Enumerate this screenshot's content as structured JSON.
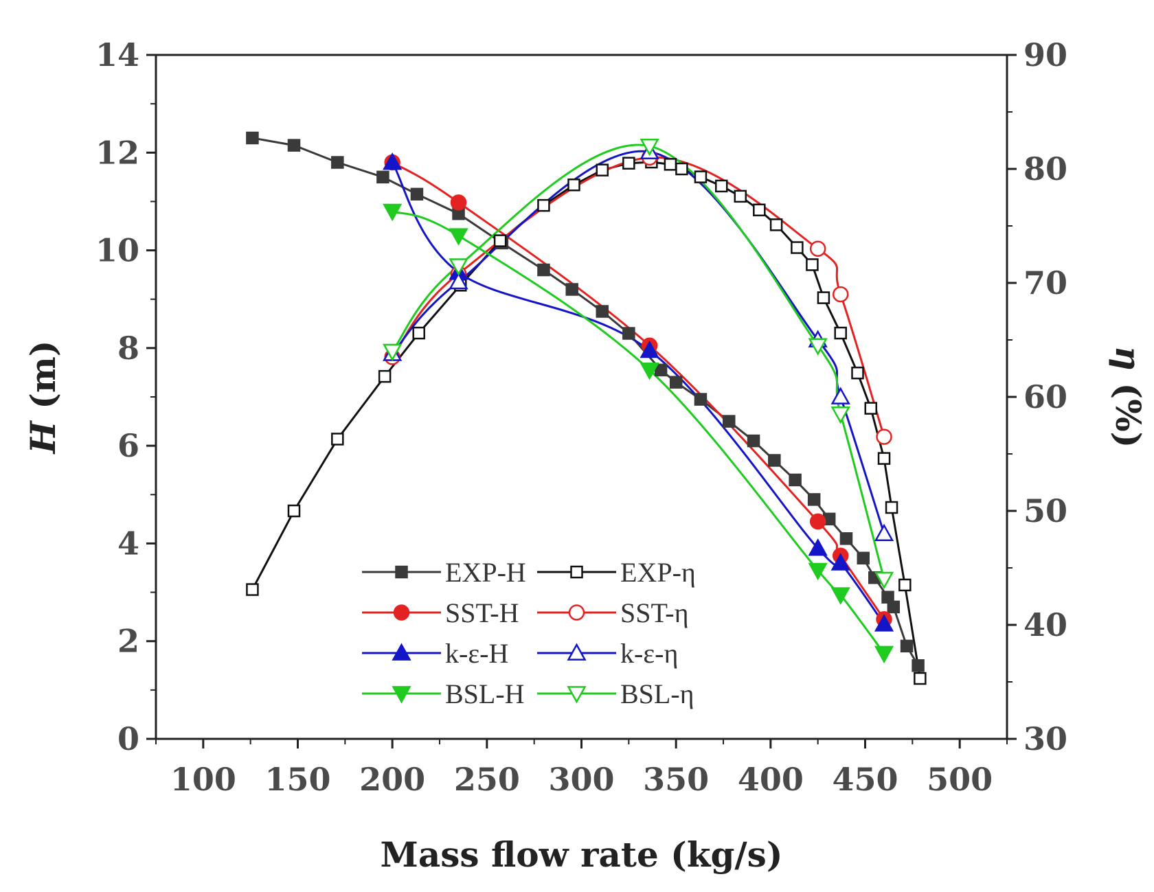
{
  "chart_data": {
    "type": "line",
    "xlabel": "Mass flow rate (kg/s)",
    "ylabel_left": {
      "italic": "H",
      "rest": " (m)"
    },
    "ylabel_right": {
      "italic": "η",
      "rest": " (%)"
    },
    "xlim": [
      75,
      525
    ],
    "ylim_left": [
      0,
      14
    ],
    "ylim_right": [
      30,
      90
    ],
    "x_ticks": [
      100,
      150,
      200,
      250,
      300,
      350,
      400,
      450,
      500
    ],
    "y_left_ticks": [
      0,
      2,
      4,
      6,
      8,
      10,
      12,
      14
    ],
    "y_right_ticks": [
      30,
      40,
      50,
      60,
      70,
      80,
      90
    ],
    "series": [
      {
        "name": "EXP-H",
        "axis": "left",
        "color": "#3a3a3a",
        "marker": "square",
        "filled": true,
        "smooth": false,
        "x": [
          126,
          148,
          171,
          195,
          213,
          235,
          258,
          280,
          295,
          311,
          325,
          342,
          350,
          363,
          378,
          391,
          402,
          413,
          423,
          431,
          440,
          449,
          455,
          462,
          465,
          472,
          478
        ],
        "y": [
          12.3,
          12.15,
          11.8,
          11.5,
          11.15,
          10.75,
          10.15,
          9.6,
          9.2,
          8.75,
          8.3,
          7.55,
          7.3,
          6.95,
          6.5,
          6.1,
          5.7,
          5.3,
          4.9,
          4.5,
          4.1,
          3.7,
          3.3,
          2.9,
          2.7,
          1.9,
          1.5
        ]
      },
      {
        "name": "EXP-η",
        "axis": "right",
        "color": "#111111",
        "marker": "square",
        "filled": false,
        "smooth": false,
        "x": [
          126,
          148,
          171,
          196,
          214,
          236,
          257,
          280,
          296,
          311,
          325,
          337,
          347,
          353,
          363,
          374,
          384,
          394,
          403,
          414,
          422,
          428,
          437,
          446,
          453,
          460,
          464,
          471,
          479
        ],
        "y": [
          43.1,
          50.0,
          56.3,
          61.8,
          65.6,
          69.8,
          73.7,
          76.8,
          78.6,
          79.9,
          80.5,
          80.6,
          80.4,
          80.0,
          79.3,
          78.5,
          77.6,
          76.4,
          75.1,
          73.1,
          71.6,
          68.7,
          65.6,
          62.1,
          59.0,
          54.6,
          50.3,
          43.5,
          35.3
        ]
      },
      {
        "name": "SST-H",
        "axis": "left",
        "color": "#e32222",
        "marker": "circle",
        "filled": true,
        "smooth": true,
        "x": [
          200,
          235,
          336,
          425,
          437,
          460
        ],
        "y": [
          11.8,
          10.98,
          8.05,
          4.45,
          3.75,
          2.45
        ]
      },
      {
        "name": "SST-η",
        "axis": "right",
        "color": "#e32222",
        "marker": "circle",
        "filled": false,
        "smooth": true,
        "x": [
          200,
          235,
          336,
          425,
          437,
          460
        ],
        "y": [
          63.5,
          70.8,
          81.0,
          73.0,
          69.0,
          56.5
        ]
      },
      {
        "name": "k-ε-H",
        "axis": "left",
        "color": "#1515c8",
        "marker": "triangle",
        "filled": true,
        "smooth": true,
        "x": [
          200,
          235,
          336,
          425,
          437,
          460
        ],
        "y": [
          11.8,
          9.55,
          7.95,
          3.9,
          3.6,
          2.35
        ]
      },
      {
        "name": "k-ε-η",
        "axis": "right",
        "color": "#1515c8",
        "marker": "triangle",
        "filled": false,
        "smooth": true,
        "x": [
          200,
          235,
          336,
          425,
          437,
          460
        ],
        "y": [
          63.8,
          70.1,
          81.5,
          65.0,
          60.0,
          48.0
        ]
      },
      {
        "name": "BSL-H",
        "axis": "left",
        "color": "#1ecb1e",
        "marker": "triangle-down",
        "filled": true,
        "smooth": true,
        "x": [
          200,
          235,
          336,
          425,
          437,
          460
        ],
        "y": [
          10.8,
          10.3,
          7.55,
          3.45,
          2.95,
          1.75
        ]
      },
      {
        "name": "BSL-η",
        "axis": "right",
        "color": "#1ecb1e",
        "marker": "triangle-down",
        "filled": false,
        "smooth": true,
        "x": [
          200,
          235,
          336,
          425,
          437,
          460
        ],
        "y": [
          64.0,
          71.5,
          82.0,
          64.5,
          58.5,
          44.0
        ]
      }
    ]
  }
}
